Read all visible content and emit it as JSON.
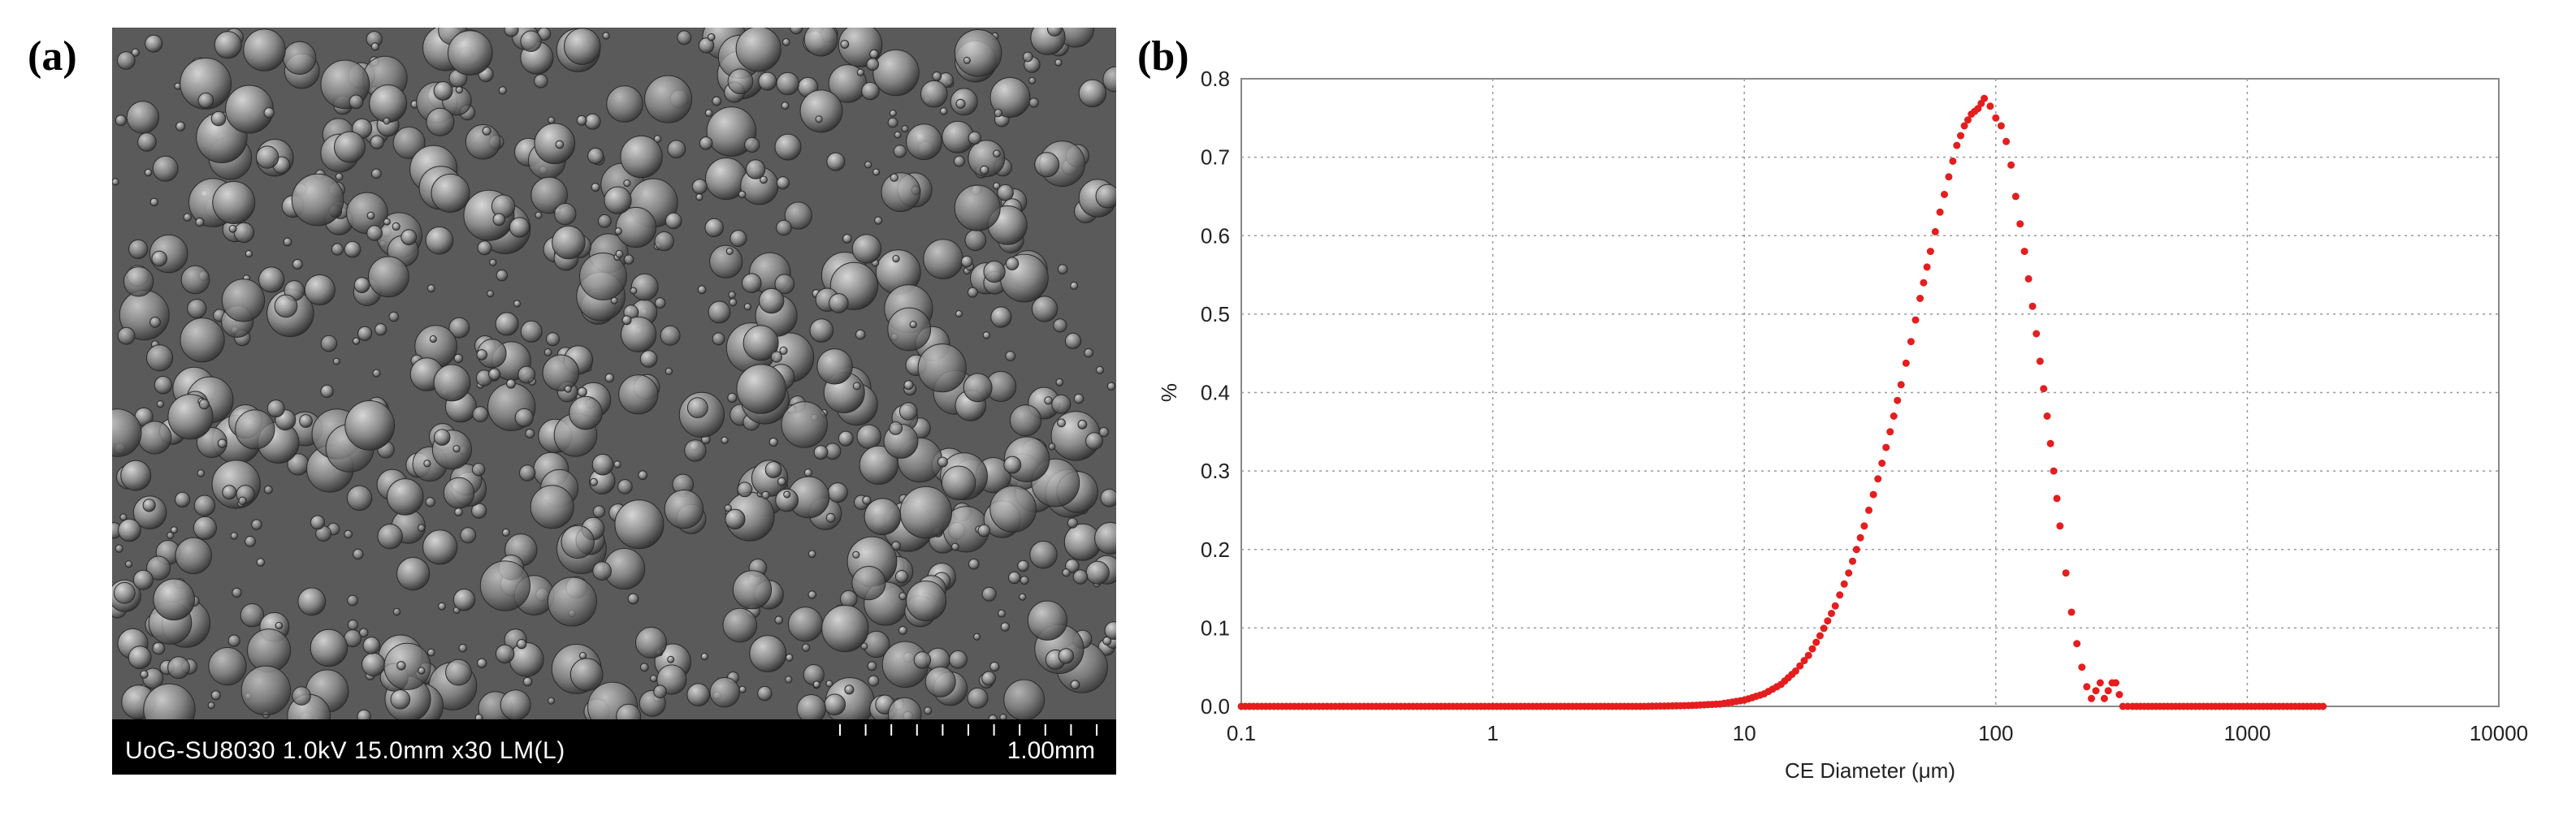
{
  "panels": {
    "a_label": "(a)",
    "b_label": "(b)"
  },
  "sem_image": {
    "info_text": "UoG-SU8030 1.0kV 15.0mm x30 LM(L)",
    "scale_label": "1.00mm"
  },
  "chart_data": {
    "type": "scatter",
    "title": "",
    "xlabel": "CE Diameter (μm)",
    "ylabel": "%",
    "x_scale": "log",
    "xlim": [
      0.1,
      10000
    ],
    "ylim": [
      0,
      0.8
    ],
    "x_ticks": [
      "0.1",
      "1",
      "10",
      "100",
      "1000",
      "10000"
    ],
    "y_ticks": [
      "0.0",
      "0.1",
      "0.2",
      "0.3",
      "0.4",
      "0.5",
      "0.6",
      "0.7",
      "0.8"
    ],
    "grid": true,
    "series": [
      {
        "color": "#e41e1e",
        "x": [
          0.1,
          0.5,
          1,
          2,
          4,
          6,
          8,
          10,
          12,
          14,
          16,
          18,
          20,
          23,
          26,
          30,
          34,
          38,
          42,
          46,
          50,
          55,
          60,
          65,
          70,
          75,
          80,
          85,
          90,
          95,
          100,
          105,
          110,
          115,
          120,
          130,
          140,
          150,
          160,
          170,
          180,
          190,
          200,
          210,
          220,
          230,
          240,
          250,
          260,
          270,
          280,
          290,
          300,
          320,
          350,
          500,
          1000,
          2000
        ],
        "y": [
          0,
          0,
          0,
          0,
          0,
          0.001,
          0.003,
          0.008,
          0.016,
          0.028,
          0.045,
          0.065,
          0.09,
          0.128,
          0.17,
          0.23,
          0.29,
          0.35,
          0.41,
          0.465,
          0.52,
          0.58,
          0.63,
          0.675,
          0.715,
          0.74,
          0.755,
          0.762,
          0.775,
          0.765,
          0.75,
          0.74,
          0.72,
          0.69,
          0.65,
          0.58,
          0.51,
          0.44,
          0.37,
          0.3,
          0.23,
          0.17,
          0.12,
          0.08,
          0.05,
          0.025,
          0.01,
          0.02,
          0.03,
          0.01,
          0.02,
          0.03,
          0.03,
          0.0,
          0,
          0,
          0,
          0
        ]
      }
    ]
  }
}
